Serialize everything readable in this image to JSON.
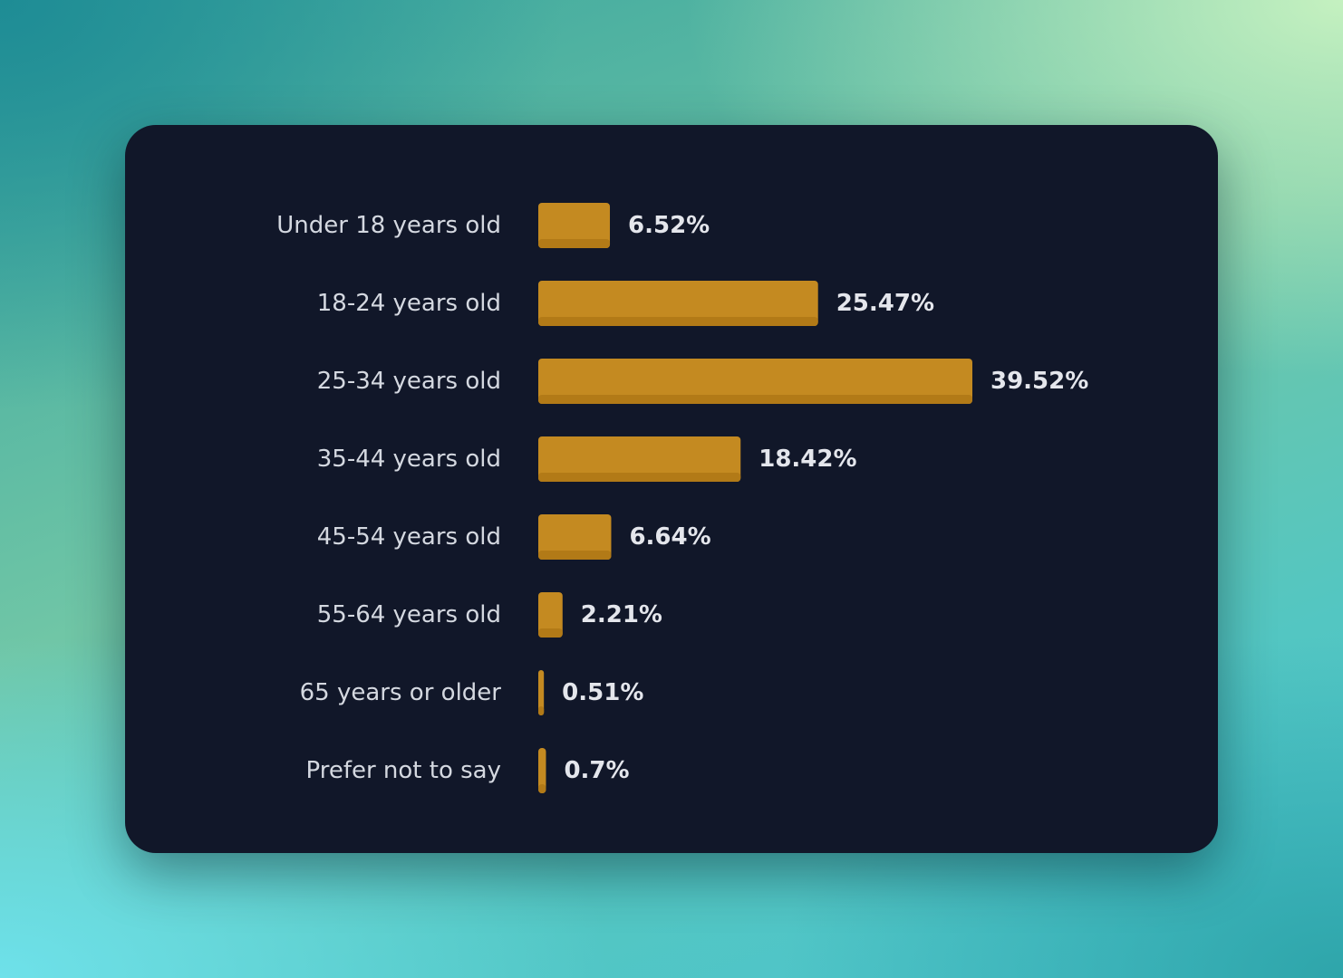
{
  "colors": {
    "card_background": "#111729",
    "bar": "#c48a21",
    "bar_shadow": "#b27a17",
    "category_text": "#d4d8e0",
    "value_text": "#e4e6ec"
  },
  "chart_data": {
    "type": "bar",
    "orientation": "horizontal",
    "categories": [
      "Under 18 years old",
      "18-24 years old",
      "25-34 years old",
      "35-44 years old",
      "45-54 years old",
      "55-64 years old",
      "65 years or older",
      "Prefer not to say"
    ],
    "values": [
      6.52,
      25.47,
      39.52,
      18.42,
      6.64,
      2.21,
      0.51,
      0.7
    ],
    "value_labels": [
      "6.52%",
      "25.47%",
      "39.52%",
      "18.42%",
      "6.64%",
      "2.21%",
      "0.51%",
      "0.7%"
    ],
    "xlim": [
      0,
      39.52
    ],
    "grid": false,
    "legend": "none"
  }
}
